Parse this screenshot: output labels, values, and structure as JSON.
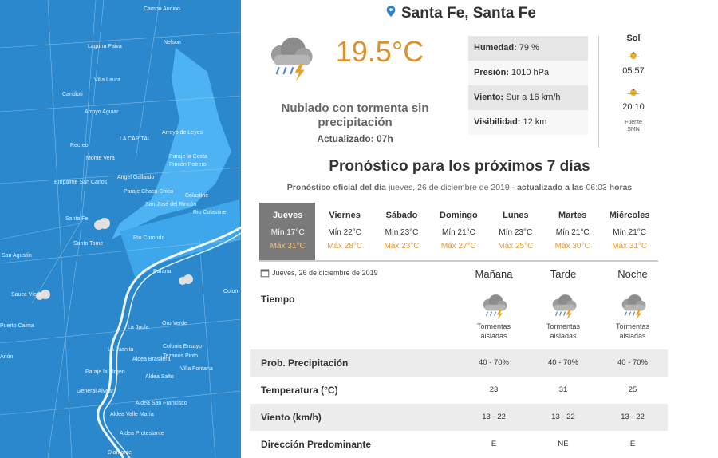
{
  "location": "Santa Fe, Santa Fe",
  "current": {
    "temperature": "19.5°C",
    "description": "Nublado con tormenta sin precipitación",
    "updated": "Actualizado: 07h",
    "details": [
      {
        "label": "Humedad:",
        "value": "79 %"
      },
      {
        "label": "Presión:",
        "value": "1010 hPa"
      },
      {
        "label": "Viento:",
        "value": "Sur a 16 km/h"
      },
      {
        "label": "Visibilidad:",
        "value": "12 km"
      }
    ],
    "sun": {
      "title": "Sol",
      "sunrise": "05:57",
      "sunset": "20:10",
      "source_label": "Fuente",
      "source": "SMN"
    }
  },
  "forecast": {
    "title": "Pronóstico para los próximos 7 días",
    "subtitle": {
      "prefix": "Pronóstico oficial del día",
      "date": "jueves, 26 de diciembre de 2019",
      "middle": "- actualizado a las",
      "time": "06:03",
      "suffix": "horas"
    },
    "days": [
      {
        "name": "Jueves",
        "min": "Mín 17°C",
        "max": "Máx 31°C"
      },
      {
        "name": "Viernes",
        "min": "Mín 22°C",
        "max": "Máx 28°C"
      },
      {
        "name": "Sábado",
        "min": "Mín 23°C",
        "max": "Máx 23°C"
      },
      {
        "name": "Domingo",
        "min": "Mín 21°C",
        "max": "Máx 27°C"
      },
      {
        "name": "Lunes",
        "min": "Mín 23°C",
        "max": "Máx 25°C"
      },
      {
        "name": "Martes",
        "min": "Mín 21°C",
        "max": "Máx 30°C"
      },
      {
        "name": "Miércoles",
        "min": "Mín 21°C",
        "max": "Máx 31°C"
      }
    ],
    "detail": {
      "date": "Jueves, 26 de diciembre de 2019",
      "columns": [
        "Mañana",
        "Tarde",
        "Noche"
      ],
      "weather": {
        "label": "Tiempo",
        "values": [
          "Tormentas aisladas",
          "Tormentas aisladas",
          "Tormentas aisladas"
        ]
      },
      "rows": [
        {
          "label": "Prob. Precipitación",
          "values": [
            "40 - 70%",
            "40 - 70%",
            "40 - 70%"
          ]
        },
        {
          "label": "Temperatura (°C)",
          "values": [
            "23",
            "31",
            "25"
          ]
        },
        {
          "label": "Viento (km/h)",
          "values": [
            "13 - 22",
            "13 - 22",
            "13 - 22"
          ]
        },
        {
          "label": "Dirección Predominante",
          "values": [
            "E",
            "NE",
            "E"
          ]
        }
      ]
    }
  },
  "map": {
    "labels": [
      "Campo Andino",
      "Nelson",
      "Laguna Paiva",
      "Villa Laura",
      "Candioti",
      "Arroyo Aguiar",
      "Recreo",
      "Monte Vera",
      "Arroyo de Leyes",
      "LA CAPITAL",
      "Paraje la Costa",
      "Rincón Potrero",
      "Angel Gallardo",
      "Empalme San Carlos",
      "Paraje Chaco Chico",
      "Colastine",
      "San José del Rincón",
      "Rio Colastine",
      "Santa Fe",
      "Santo Tome",
      "Rio Coronda",
      "San Agustín",
      "Parana",
      "Sauce Viejo",
      "Colon",
      "Oro Verde",
      "Puerto Caima",
      "La Jaula",
      "Colonia Ensayo",
      "La Juanita",
      "Aldea Brasilera",
      "Tezanos Pinto",
      "Arjón",
      "Villa Fontana",
      "Paraje la Virgen",
      "Aldea Salto",
      "General Alvear",
      "Aldea San Francisco",
      "Aldea Valle María",
      "Aldea Protestante",
      "Diamante"
    ]
  }
}
